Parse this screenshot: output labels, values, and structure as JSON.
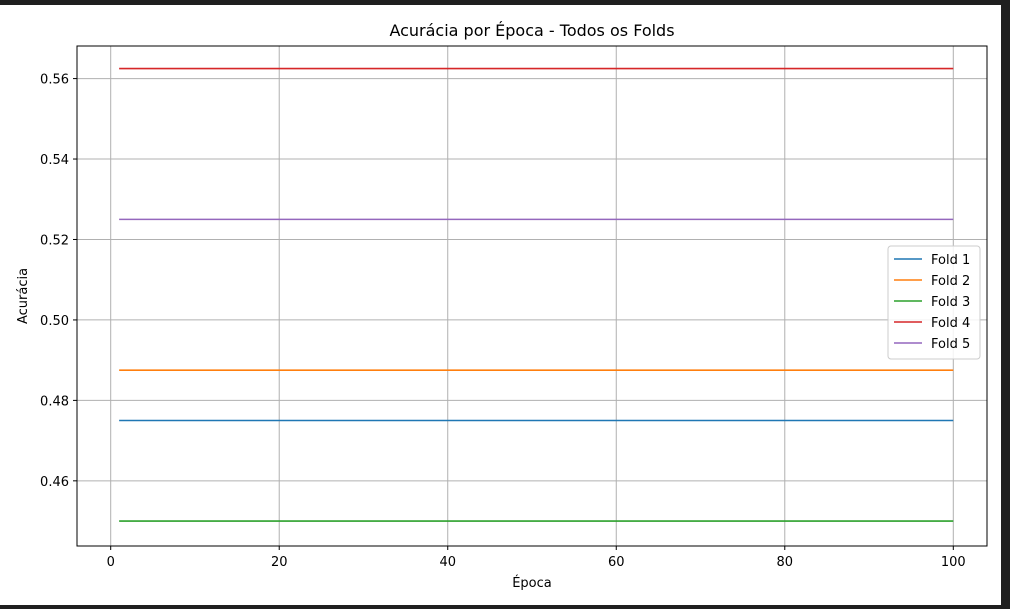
{
  "chart_data": {
    "type": "line",
    "title": "Acurácia por Época - Todos os Folds",
    "xlabel": "Época",
    "ylabel": "Acurácia",
    "xlim": [
      -4,
      104
    ],
    "ylim": [
      0.4438,
      0.5681
    ],
    "x_range": [
      1,
      100
    ],
    "xticks": [
      0,
      20,
      40,
      60,
      80,
      100
    ],
    "yticks": [
      0.46,
      0.48,
      0.5,
      0.52,
      0.54,
      0.56
    ],
    "ytick_labels": [
      "0.46",
      "0.48",
      "0.50",
      "0.52",
      "0.54",
      "0.56"
    ],
    "xtick_labels": [
      "0",
      "20",
      "40",
      "60",
      "80",
      "100"
    ],
    "grid": true,
    "legend_position": "center-right",
    "series": [
      {
        "name": "Fold 1",
        "color": "#1f77b4",
        "value": 0.475
      },
      {
        "name": "Fold 2",
        "color": "#ff7f0e",
        "value": 0.4875
      },
      {
        "name": "Fold 3",
        "color": "#2ca02c",
        "value": 0.45
      },
      {
        "name": "Fold 4",
        "color": "#d62728",
        "value": 0.5625
      },
      {
        "name": "Fold 5",
        "color": "#9467bd",
        "value": 0.525
      }
    ]
  }
}
